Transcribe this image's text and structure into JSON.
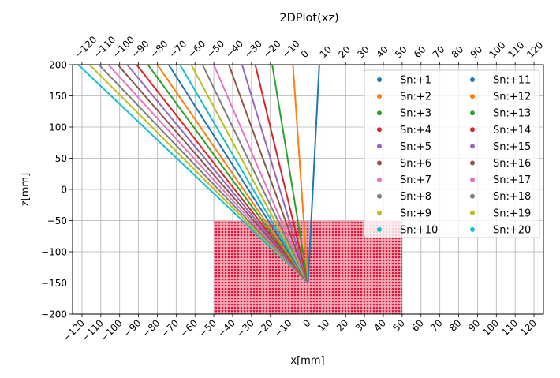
{
  "chart_data": {
    "type": "scatter",
    "title": "2DPlot(xz)",
    "xlabel": "x[mm]",
    "ylabel": "z[mm]",
    "xlim": [
      -125,
      125
    ],
    "ylim": [
      -200,
      200
    ],
    "xticks": [
      "-120",
      "-110",
      "-100",
      "-90",
      "-80",
      "-70",
      "-60",
      "-50",
      "-40",
      "-30",
      "-20",
      "-10",
      "0",
      "10",
      "20",
      "30",
      "40",
      "50",
      "60",
      "70",
      "80",
      "90",
      "100",
      "110",
      "120"
    ],
    "yticks": [
      "-200",
      "-150",
      "-100",
      "-50",
      "0",
      "50",
      "100",
      "150",
      "200"
    ],
    "grid": true,
    "top_axis_ticks": true,
    "legend_position": "upper-right",
    "legend_columns": 2,
    "region": {
      "color": "#dc143c",
      "x_range": [
        -50,
        50
      ],
      "z_range": [
        -200,
        -50
      ]
    },
    "series": [
      {
        "name": "Sn:+1",
        "color": "#1f77b4",
        "x_top": 6,
        "z_top": 200,
        "x_bottom": 0,
        "z_bottom": -150
      },
      {
        "name": "Sn:+2",
        "color": "#ff7f0e",
        "x_top": -8,
        "z_top": 200,
        "x_bottom": 0,
        "z_bottom": -150
      },
      {
        "name": "Sn:+3",
        "color": "#2ca02c",
        "x_top": -19,
        "z_top": 200,
        "x_bottom": 0,
        "z_bottom": -150
      },
      {
        "name": "Sn:+4",
        "color": "#d62728",
        "x_top": -28,
        "z_top": 200,
        "x_bottom": 0,
        "z_bottom": -150
      },
      {
        "name": "Sn:+5",
        "color": "#9467bd",
        "x_top": -35,
        "z_top": 200,
        "x_bottom": 0,
        "z_bottom": -150
      },
      {
        "name": "Sn:+6",
        "color": "#8c564b",
        "x_top": -42,
        "z_top": 200,
        "x_bottom": 0,
        "z_bottom": -150
      },
      {
        "name": "Sn:+7",
        "color": "#e377c2",
        "x_top": -50,
        "z_top": 200,
        "x_bottom": 0,
        "z_bottom": -150
      },
      {
        "name": "Sn:+8",
        "color": "#7f7f7f",
        "x_top": -56,
        "z_top": 200,
        "x_bottom": 0,
        "z_bottom": -150
      },
      {
        "name": "Sn:+9",
        "color": "#bcbd22",
        "x_top": -62,
        "z_top": 200,
        "x_bottom": 0,
        "z_bottom": -150
      },
      {
        "name": "Sn:+10",
        "color": "#17becf",
        "x_top": -68,
        "z_top": 200,
        "x_bottom": 0,
        "z_bottom": -150
      },
      {
        "name": "Sn:+11",
        "color": "#1f77b4",
        "x_top": -74,
        "z_top": 200,
        "x_bottom": 0,
        "z_bottom": -150
      },
      {
        "name": "Sn:+12",
        "color": "#ff7f0e",
        "x_top": -80,
        "z_top": 200,
        "x_bottom": 0,
        "z_bottom": -150
      },
      {
        "name": "Sn:+13",
        "color": "#2ca02c",
        "x_top": -85,
        "z_top": 200,
        "x_bottom": 0,
        "z_bottom": -150
      },
      {
        "name": "Sn:+14",
        "color": "#d62728",
        "x_top": -91,
        "z_top": 200,
        "x_bottom": 0,
        "z_bottom": -150
      },
      {
        "name": "Sn:+15",
        "color": "#9467bd",
        "x_top": -96,
        "z_top": 200,
        "x_bottom": 0,
        "z_bottom": -150
      },
      {
        "name": "Sn:+16",
        "color": "#8c564b",
        "x_top": -101,
        "z_top": 200,
        "x_bottom": 0,
        "z_bottom": -150
      },
      {
        "name": "Sn:+17",
        "color": "#e377c2",
        "x_top": -106,
        "z_top": 200,
        "x_bottom": 0,
        "z_bottom": -150
      },
      {
        "name": "Sn:+18",
        "color": "#7f7f7f",
        "x_top": -111,
        "z_top": 200,
        "x_bottom": 0,
        "z_bottom": -150
      },
      {
        "name": "Sn:+19",
        "color": "#bcbd22",
        "x_top": -116,
        "z_top": 200,
        "x_bottom": 0,
        "z_bottom": -150
      },
      {
        "name": "Sn:+20",
        "color": "#17becf",
        "x_top": -122,
        "z_top": 200,
        "x_bottom": 0,
        "z_bottom": -150
      }
    ]
  }
}
